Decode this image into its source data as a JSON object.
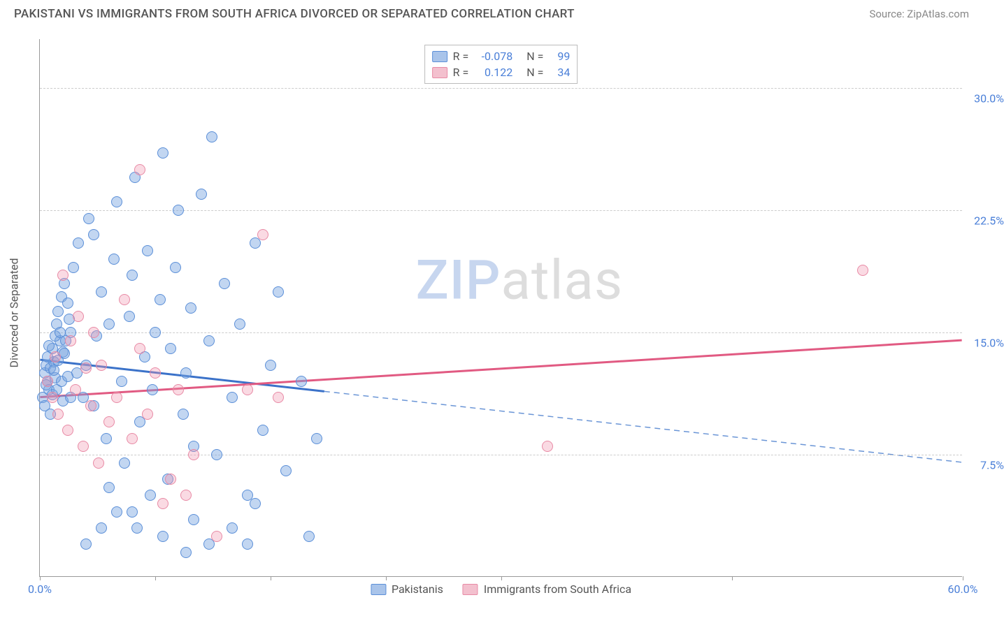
{
  "header": {
    "title": "PAKISTANI VS IMMIGRANTS FROM SOUTH AFRICA DIVORCED OR SEPARATED CORRELATION CHART",
    "source": "Source: ZipAtlas.com"
  },
  "chart": {
    "type": "scatter",
    "ylabel": "Divorced or Separated",
    "x_range": [
      0,
      60
    ],
    "y_range": [
      0,
      33
    ],
    "x_ticks": [
      0,
      7.5,
      15,
      22.5,
      30,
      45,
      60
    ],
    "x_tick_labels": {
      "0": "0.0%",
      "60": "60.0%"
    },
    "y_gridlines": [
      7.5,
      15,
      22.5,
      30
    ],
    "y_tick_labels": {
      "7.5": "7.5%",
      "15": "15.0%",
      "22.5": "22.5%",
      "30": "30.0%"
    },
    "background_color": "#ffffff",
    "grid_color": "#cccccc",
    "axis_line_color": "#999999",
    "tick_label_color": "#4a7fd8",
    "marker_size": 16,
    "series": [
      {
        "id": "pakistanis",
        "label": "Pakistanis",
        "fill_color": "rgba(120,165,225,0.45)",
        "stroke_color": "#5b8fd8",
        "legend_swatch_fill": "#a9c4ea",
        "legend_swatch_stroke": "#5b8fd8",
        "R": "-0.078",
        "N": "99",
        "trend": {
          "y_at_x0": 13.3,
          "y_at_x60": 7.0,
          "solid_until_x": 18.5,
          "solid_color": "#3b72c9",
          "dash_color": "#6a95d6",
          "width": 3
        },
        "points": [
          [
            0.3,
            12.5
          ],
          [
            0.4,
            13.0
          ],
          [
            0.5,
            12.0
          ],
          [
            0.6,
            11.5
          ],
          [
            0.7,
            12.8
          ],
          [
            0.8,
            14.0
          ],
          [
            0.9,
            13.2
          ],
          [
            1.0,
            12.2
          ],
          [
            1.1,
            15.5
          ],
          [
            1.2,
            16.3
          ],
          [
            1.3,
            14.5
          ],
          [
            1.4,
            17.2
          ],
          [
            1.5,
            13.8
          ],
          [
            1.6,
            18.0
          ],
          [
            1.8,
            16.8
          ],
          [
            2.0,
            15.0
          ],
          [
            2.2,
            19.0
          ],
          [
            2.4,
            12.5
          ],
          [
            2.5,
            20.5
          ],
          [
            2.8,
            11.0
          ],
          [
            3.0,
            13.0
          ],
          [
            3.2,
            22.0
          ],
          [
            3.5,
            10.5
          ],
          [
            3.7,
            14.8
          ],
          [
            4.0,
            17.5
          ],
          [
            4.3,
            8.5
          ],
          [
            4.5,
            15.5
          ],
          [
            4.8,
            19.5
          ],
          [
            5.0,
            23.0
          ],
          [
            5.3,
            12.0
          ],
          [
            5.5,
            7.0
          ],
          [
            5.8,
            16.0
          ],
          [
            6.0,
            18.5
          ],
          [
            6.2,
            24.5
          ],
          [
            6.5,
            9.5
          ],
          [
            6.8,
            13.5
          ],
          [
            7.0,
            20.0
          ],
          [
            7.3,
            11.5
          ],
          [
            7.5,
            15.0
          ],
          [
            7.8,
            17.0
          ],
          [
            8.0,
            26.0
          ],
          [
            8.3,
            6.0
          ],
          [
            8.5,
            14.0
          ],
          [
            8.8,
            19.0
          ],
          [
            9.0,
            22.5
          ],
          [
            9.3,
            10.0
          ],
          [
            9.5,
            12.5
          ],
          [
            9.8,
            16.5
          ],
          [
            10.0,
            8.0
          ],
          [
            10.5,
            23.5
          ],
          [
            11.0,
            14.5
          ],
          [
            11.2,
            27.0
          ],
          [
            11.5,
            7.5
          ],
          [
            12.0,
            18.0
          ],
          [
            12.5,
            11.0
          ],
          [
            13.0,
            15.5
          ],
          [
            13.5,
            5.0
          ],
          [
            14.0,
            20.5
          ],
          [
            14.5,
            9.0
          ],
          [
            15.0,
            13.0
          ],
          [
            15.5,
            17.5
          ],
          [
            16.0,
            6.5
          ],
          [
            17.0,
            12.0
          ],
          [
            17.5,
            2.5
          ],
          [
            18.0,
            8.5
          ],
          [
            3.0,
            2.0
          ],
          [
            4.0,
            3.0
          ],
          [
            6.0,
            4.0
          ],
          [
            8.0,
            2.5
          ],
          [
            9.5,
            1.5
          ],
          [
            10.0,
            3.5
          ],
          [
            11.0,
            2.0
          ],
          [
            12.5,
            3.0
          ],
          [
            13.5,
            2.0
          ],
          [
            14.0,
            4.5
          ],
          [
            3.5,
            21.0
          ],
          [
            4.5,
            5.5
          ],
          [
            5.0,
            4.0
          ],
          [
            6.3,
            3.0
          ],
          [
            7.2,
            5.0
          ],
          [
            0.2,
            11.0
          ],
          [
            0.3,
            10.5
          ],
          [
            0.4,
            11.8
          ],
          [
            0.5,
            13.5
          ],
          [
            0.6,
            14.2
          ],
          [
            0.7,
            10.0
          ],
          [
            0.8,
            11.2
          ],
          [
            0.9,
            12.7
          ],
          [
            1.0,
            14.8
          ],
          [
            1.1,
            11.5
          ],
          [
            1.2,
            13.3
          ],
          [
            1.3,
            15.0
          ],
          [
            1.4,
            12.0
          ],
          [
            1.5,
            10.8
          ],
          [
            1.6,
            13.7
          ],
          [
            1.7,
            14.5
          ],
          [
            1.8,
            12.3
          ],
          [
            1.9,
            15.8
          ],
          [
            2.0,
            11.0
          ]
        ]
      },
      {
        "id": "south_africa",
        "label": "Immigrants from South Africa",
        "fill_color": "rgba(240,150,175,0.35)",
        "stroke_color": "#e88aa5",
        "legend_swatch_fill": "#f3c0ce",
        "legend_swatch_stroke": "#e88aa5",
        "R": "0.122",
        "N": "34",
        "trend": {
          "y_at_x0": 11.0,
          "y_at_x60": 14.5,
          "solid_until_x": 60,
          "solid_color": "#e15a82",
          "dash_color": "#e15a82",
          "width": 3
        },
        "points": [
          [
            0.5,
            12.0
          ],
          [
            0.8,
            11.0
          ],
          [
            1.0,
            13.5
          ],
          [
            1.2,
            10.0
          ],
          [
            1.5,
            18.5
          ],
          [
            1.8,
            9.0
          ],
          [
            2.0,
            14.5
          ],
          [
            2.3,
            11.5
          ],
          [
            2.5,
            16.0
          ],
          [
            2.8,
            8.0
          ],
          [
            3.0,
            12.8
          ],
          [
            3.3,
            10.5
          ],
          [
            3.5,
            15.0
          ],
          [
            3.8,
            7.0
          ],
          [
            4.0,
            13.0
          ],
          [
            4.5,
            9.5
          ],
          [
            5.0,
            11.0
          ],
          [
            5.5,
            17.0
          ],
          [
            6.0,
            8.5
          ],
          [
            6.5,
            14.0
          ],
          [
            7.0,
            10.0
          ],
          [
            7.5,
            12.5
          ],
          [
            8.0,
            4.5
          ],
          [
            8.5,
            6.0
          ],
          [
            9.0,
            11.5
          ],
          [
            9.5,
            5.0
          ],
          [
            10.0,
            7.5
          ],
          [
            11.5,
            2.5
          ],
          [
            13.5,
            11.5
          ],
          [
            14.5,
            21.0
          ],
          [
            15.5,
            11.0
          ],
          [
            33.0,
            8.0
          ],
          [
            53.5,
            18.8
          ],
          [
            6.5,
            25.0
          ]
        ]
      }
    ],
    "watermark": {
      "part1": "ZIP",
      "part2": "atlas"
    }
  }
}
